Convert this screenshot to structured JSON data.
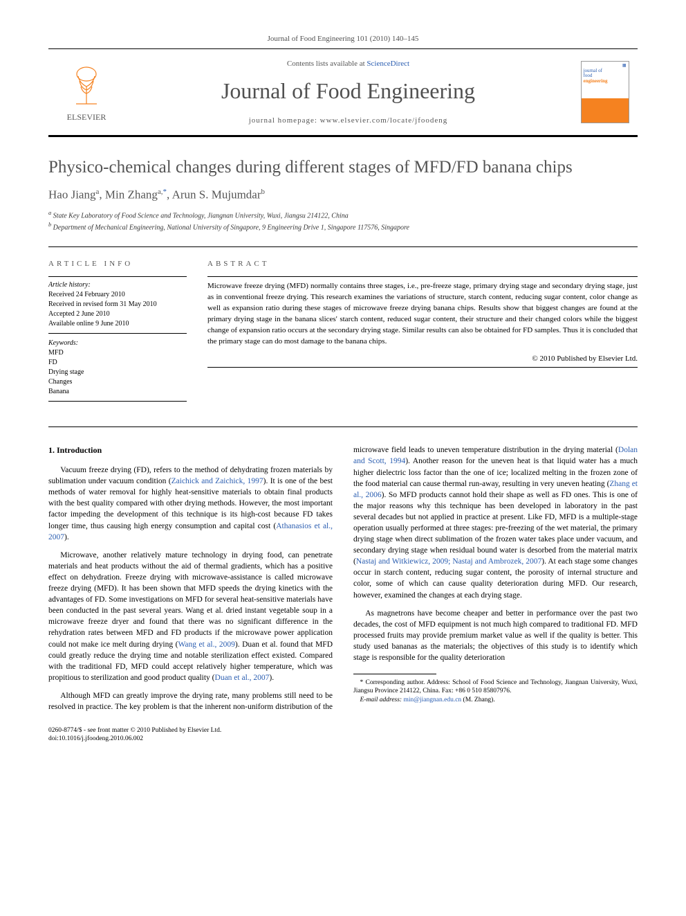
{
  "header": {
    "journal_ref": "Journal of Food Engineering 101 (2010) 140–145",
    "contents_text": "Contents lists available at ",
    "contents_link": "ScienceDirect",
    "journal_name": "Journal of Food Engineering",
    "homepage_label": "journal homepage: www.elsevier.com/locate/jfoodeng",
    "publisher": "ELSEVIER",
    "cover_title_1": "journal of",
    "cover_title_2": "food",
    "cover_title_3": "engineering"
  },
  "article": {
    "title": "Physico-chemical changes during different stages of MFD/FD banana chips",
    "authors_html": "Hao Jiang<sup>a</sup>, Min Zhang<sup>a,</sup><sup class=\"asterisk\">*</sup>, Arun S. Mujumdar<sup>b</sup>",
    "affiliations": [
      {
        "marker": "a",
        "text": "State Key Laboratory of Food Science and Technology, Jiangnan University, Wuxi, Jiangsu 214122, China"
      },
      {
        "marker": "b",
        "text": "Department of Mechanical Engineering, National University of Singapore, 9 Engineering Drive 1, Singapore 117576, Singapore"
      }
    ]
  },
  "info": {
    "section_label": "ARTICLE INFO",
    "history_label": "Article history:",
    "history": [
      "Received 24 February 2010",
      "Received in revised form 31 May 2010",
      "Accepted 2 June 2010",
      "Available online 9 June 2010"
    ],
    "keywords_label": "Keywords:",
    "keywords": [
      "MFD",
      "FD",
      "Drying stage",
      "Changes",
      "Banana"
    ]
  },
  "abstract": {
    "section_label": "ABSTRACT",
    "text": "Microwave freeze drying (MFD) normally contains three stages, i.e., pre-freeze stage, primary drying stage and secondary drying stage, just as in conventional freeze drying. This research examines the variations of structure, starch content, reducing sugar content, color change as well as expansion ratio during these stages of microwave freeze drying banana chips. Results show that biggest changes are found at the primary drying stage in the banana slices' starch content, reduced sugar content, their structure and their changed colors while the biggest change of expansion ratio occurs at the secondary drying stage. Similar results can also be obtained for FD samples. Thus it is concluded that the primary stage can do most damage to the banana chips.",
    "copyright": "© 2010 Published by Elsevier Ltd."
  },
  "body": {
    "section_heading": "1. Introduction",
    "p1_a": "Vacuum freeze drying (FD), refers to the method of dehydrating frozen materials by sublimation under vacuum condition (",
    "p1_ref1": "Zaichick and Zaichick, 1997",
    "p1_b": "). It is one of the best methods of water removal for highly heat-sensitive materials to obtain final products with the best quality compared with other drying methods. However, the most important factor impeding the development of this technique is its high-cost because FD takes longer time, thus causing high energy consumption and capital cost (",
    "p1_ref2": "Athanasios et al., 2007",
    "p1_c": ").",
    "p2_a": "Microwave, another relatively mature technology in drying food, can penetrate materials and heat products without the aid of thermal gradients, which has a positive effect on dehydration. Freeze drying with microwave-assistance is called microwave freeze drying (MFD). It has been shown that MFD speeds the drying kinetics with the advantages of FD. Some investigations on MFD for several heat-sensitive materials have been conducted in the past several years. Wang et al. dried instant vegetable soup in a microwave freeze dryer and found that there was no significant difference in the rehydration rates between MFD and FD products if the microwave power application could not make ice melt during drying (",
    "p2_ref1": "Wang et al., 2009",
    "p2_b": "). Duan et al. found that MFD could greatly reduce the drying time and notable sterilization effect existed. Compared with the traditional FD, MFD could accept relatively higher temperature, which was propitious to sterilization and good product quality (",
    "p2_ref2": "Duan et al., 2007",
    "p2_c": ").",
    "p3_a": "Although MFD can greatly improve the drying rate, many problems still need to be resolved in practice. The key problem is that the inherent non-uniform distribution of the microwave field leads to uneven temperature distribution in the drying material (",
    "p3_ref1": "Dolan and Scott, 1994",
    "p3_b": "). Another reason for the uneven heat is that liquid water has a much higher dielectric loss factor than the one of ice; localized melting in the frozen zone of the food material can cause thermal run-away, resulting in very uneven heating (",
    "p3_ref2": "Zhang et al., 2006",
    "p3_c": "). So MFD products cannot hold their shape as well as FD ones. This is one of the major reasons why this technique has been developed in laboratory in the past several decades but not applied in practice at present. Like FD, MFD is a multiple-stage operation usually performed at three stages: pre-freezing of the wet material, the primary drying stage when direct sublimation of the frozen water takes place under vacuum, and secondary drying stage when residual bound water is desorbed from the material matrix (",
    "p3_ref3": "Nastaj and Witkiewicz, 2009; Nastaj and Ambrozek, 2007",
    "p3_d": "). At each stage some changes occur in starch content, reducing sugar content, the porosity of internal structure and color, some of which can cause quality deterioration during MFD. Our research, however, examined the changes at each drying stage.",
    "p4": "As magnetrons have become cheaper and better in performance over the past two decades, the cost of MFD equipment is not much high compared to traditional FD. MFD processed fruits may provide premium market value as well if the quality is better. This study used bananas as the materials; the objectives of this study is to identify which stage is responsible for the quality deterioration"
  },
  "footnote": {
    "corr": "* Corresponding author. Address: School of Food Science and Technology, Jiangnan University, Wuxi, Jiangsu Province 214122, China. Fax: +86 0 510 85807976.",
    "email_label": "E-mail address:",
    "email": "min@jiangnan.edu.cn",
    "email_suffix": " (M. Zhang)."
  },
  "footer": {
    "line1": "0260-8774/$ - see front matter © 2010 Published by Elsevier Ltd.",
    "line2": "doi:10.1016/j.jfoodeng.2010.06.002"
  }
}
